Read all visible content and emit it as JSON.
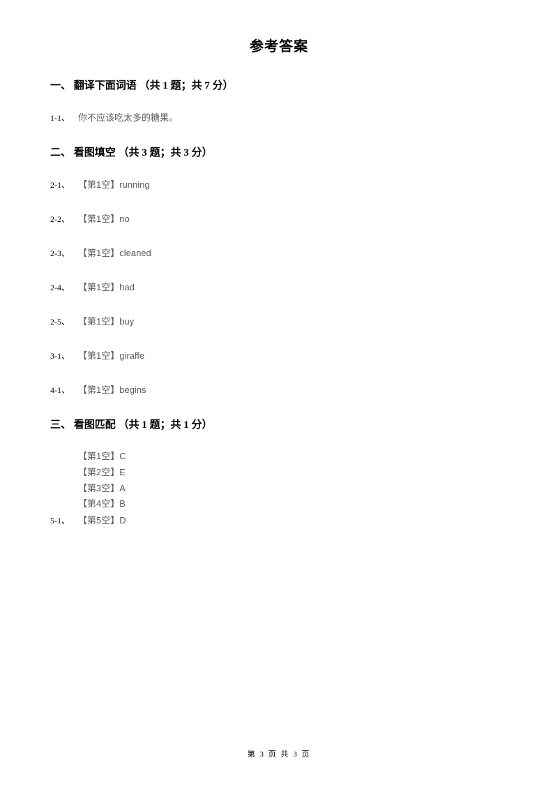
{
  "title": "参考答案",
  "section1": {
    "header": "一、 翻译下面词语 （共 1 题；共 7 分）",
    "items": [
      {
        "num": "1-1、",
        "text": "你不应该吃太多的糖果。"
      }
    ]
  },
  "section2": {
    "header": "二、 看图填空 （共 3 题；共 3 分）",
    "items": [
      {
        "num": "2-1、",
        "text": "【第1空】running"
      },
      {
        "num": "2-2、",
        "text": "【第1空】no"
      },
      {
        "num": "2-3、",
        "text": "【第1空】cleaned"
      },
      {
        "num": "2-4、",
        "text": "【第1空】had"
      },
      {
        "num": "2-5、",
        "text": "【第1空】buy"
      },
      {
        "num": "3-1、",
        "text": "【第1空】giraffe"
      },
      {
        "num": "4-1、",
        "text": "【第1空】begins"
      }
    ]
  },
  "section3": {
    "header": "三、 看图匹配 （共 1 题；共 1 分）",
    "multiNum": "5-1、",
    "lines": [
      "【第1空】C",
      "【第2空】E",
      "【第3空】A",
      "【第4空】B",
      "【第5空】D"
    ]
  },
  "footer": "第 3 页 共 3 页"
}
